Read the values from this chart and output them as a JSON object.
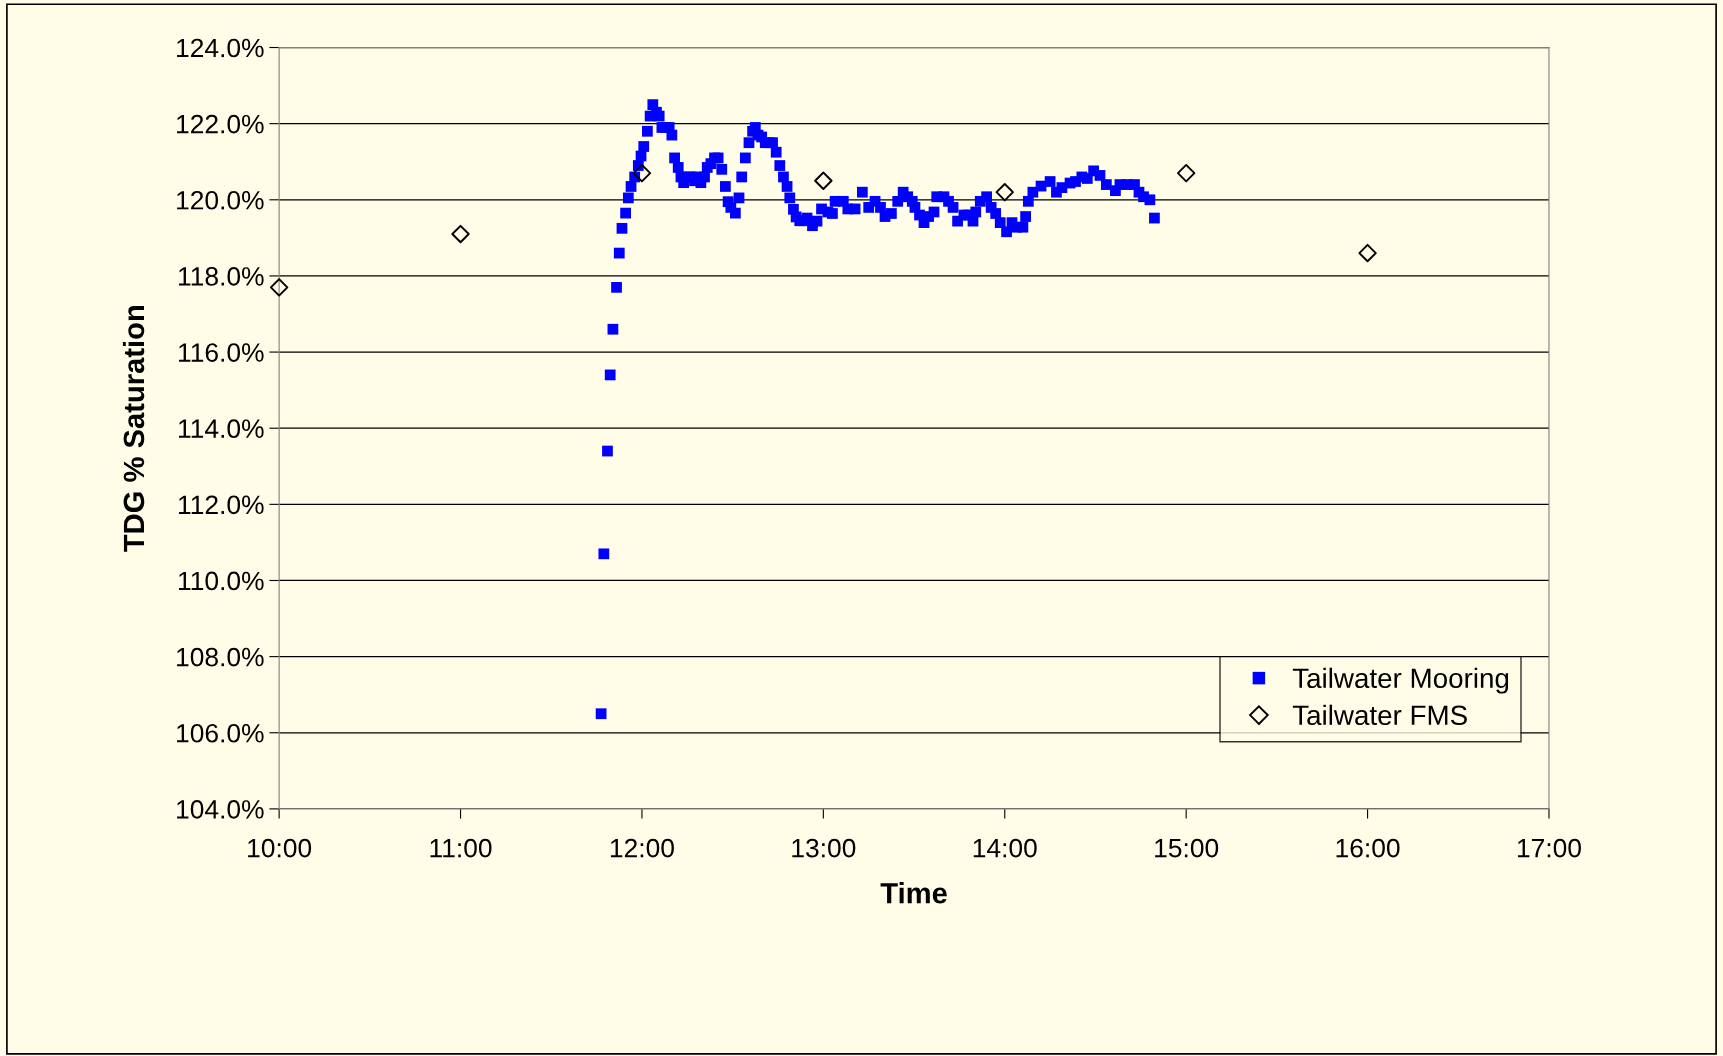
{
  "chart_data": {
    "type": "scatter",
    "xlabel": "Time",
    "ylabel": "TDG % Saturation",
    "xlim": [
      10,
      17
    ],
    "xticks": [
      {
        "value": 10,
        "label": "10:00"
      },
      {
        "value": 11,
        "label": "11:00"
      },
      {
        "value": 12,
        "label": "12:00"
      },
      {
        "value": 13,
        "label": "13:00"
      },
      {
        "value": 14,
        "label": "14:00"
      },
      {
        "value": 15,
        "label": "15:00"
      },
      {
        "value": 16,
        "label": "16:00"
      },
      {
        "value": 17,
        "label": "17:00"
      }
    ],
    "ylim": [
      104,
      124
    ],
    "yticks": [
      {
        "value": 104,
        "label": "104.0%"
      },
      {
        "value": 106,
        "label": "106.0%"
      },
      {
        "value": 108,
        "label": "108.0%"
      },
      {
        "value": 110,
        "label": "110.0%"
      },
      {
        "value": 112,
        "label": "112.0%"
      },
      {
        "value": 114,
        "label": "114.0%"
      },
      {
        "value": 116,
        "label": "116.0%"
      },
      {
        "value": 118,
        "label": "118.0%"
      },
      {
        "value": 120,
        "label": "120.0%"
      },
      {
        "value": 122,
        "label": "122.0%"
      },
      {
        "value": 124,
        "label": "124.0%"
      }
    ],
    "grid": "y",
    "legend": "bottom right",
    "series": [
      {
        "name": "Tailwater Mooring",
        "color": "#0000ff",
        "marker": "square",
        "x": [
          11.775,
          11.79,
          11.81,
          11.825,
          11.84,
          11.86,
          11.875,
          11.89,
          11.91,
          11.925,
          11.94,
          11.96,
          11.98,
          11.995,
          12.01,
          12.03,
          12.045,
          12.06,
          12.08,
          12.095,
          12.11,
          12.13,
          12.15,
          12.165,
          12.18,
          12.2,
          12.215,
          12.23,
          12.255,
          12.27,
          12.29,
          12.305,
          12.325,
          12.345,
          12.36,
          12.38,
          12.4,
          12.42,
          12.44,
          12.46,
          12.475,
          12.49,
          12.515,
          12.535,
          12.55,
          12.57,
          12.59,
          12.61,
          12.625,
          12.64,
          12.66,
          12.68,
          12.7,
          12.72,
          12.74,
          12.76,
          12.78,
          12.8,
          12.815,
          12.835,
          12.85,
          12.87,
          12.89,
          12.91,
          12.94,
          12.965,
          12.99,
          13.025,
          13.05,
          13.065,
          13.11,
          13.135,
          13.175,
          13.215,
          13.25,
          13.285,
          13.315,
          13.34,
          13.375,
          13.41,
          13.44,
          13.465,
          13.49,
          13.505,
          13.53,
          13.555,
          13.58,
          13.61,
          13.625,
          13.665,
          13.69,
          13.715,
          13.74,
          13.775,
          13.8,
          13.825,
          13.84,
          13.865,
          13.9,
          13.925,
          13.95,
          13.975,
          14.01,
          14.04,
          14.065,
          14.1,
          14.115,
          14.13,
          14.155,
          14.2,
          14.25,
          14.285,
          14.315,
          14.36,
          14.39,
          14.425,
          14.455,
          14.49,
          14.525,
          14.56,
          14.61,
          14.635,
          14.675,
          14.715,
          14.74,
          14.765,
          14.8,
          14.825
        ],
        "values": [
          106.5,
          110.7,
          113.4,
          115.4,
          116.6,
          117.7,
          118.6,
          119.25,
          119.65,
          120.05,
          120.35,
          120.6,
          120.9,
          121.15,
          121.4,
          121.8,
          122.2,
          122.5,
          122.3,
          122.2,
          121.9,
          121.9,
          121.9,
          121.7,
          121.1,
          120.85,
          120.6,
          120.45,
          120.6,
          120.6,
          120.5,
          120.6,
          120.45,
          120.6,
          120.85,
          120.95,
          121.1,
          121.1,
          120.8,
          120.35,
          119.95,
          119.8,
          119.65,
          120.05,
          120.6,
          121.1,
          121.5,
          121.8,
          121.9,
          121.7,
          121.65,
          121.5,
          121.5,
          121.5,
          121.25,
          120.9,
          120.6,
          120.35,
          120.05,
          119.75,
          119.55,
          119.45,
          119.45,
          119.52,
          119.32,
          119.44,
          119.76,
          119.68,
          119.64,
          119.96,
          119.96,
          119.76,
          119.76,
          120.2,
          119.8,
          119.96,
          119.8,
          119.56,
          119.64,
          119.96,
          120.2,
          120.08,
          119.96,
          119.8,
          119.6,
          119.4,
          119.56,
          119.68,
          120.08,
          120.08,
          119.96,
          119.8,
          119.44,
          119.6,
          119.6,
          119.44,
          119.68,
          119.96,
          120.08,
          119.8,
          119.64,
          119.4,
          119.16,
          119.4,
          119.28,
          119.28,
          119.56,
          119.96,
          120.2,
          120.36,
          120.48,
          120.2,
          120.32,
          120.44,
          120.48,
          120.6,
          120.56,
          120.76,
          120.64,
          120.4,
          120.24,
          120.4,
          120.4,
          120.4,
          120.2,
          120.08,
          120.0,
          119.52
        ]
      },
      {
        "name": "Tailwater FMS",
        "color": "#000000",
        "marker": "diamond",
        "x": [
          10,
          11,
          12,
          13,
          14,
          15,
          16
        ],
        "values": [
          117.7,
          119.1,
          120.7,
          120.5,
          120.2,
          120.7,
          118.6
        ]
      }
    ]
  }
}
